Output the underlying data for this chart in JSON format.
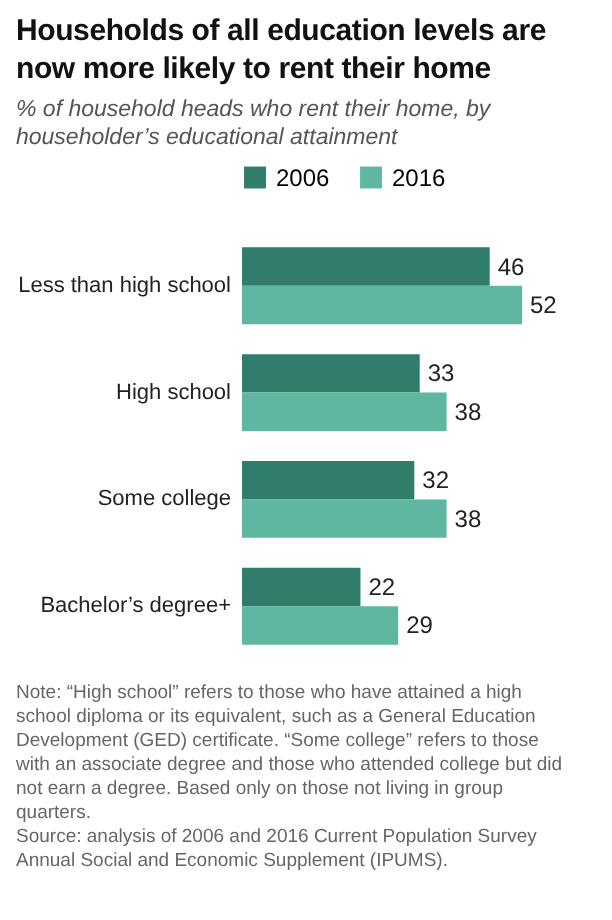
{
  "chart_data": {
    "type": "bar",
    "orientation": "horizontal",
    "title": "Households of all education levels are now more likely to rent their home",
    "subtitle": "% of household heads who rent their home, by householder’s educational attainment",
    "categories": [
      "Less than high school",
      "High school",
      "Some college",
      "Bachelor’s degree+"
    ],
    "series": [
      {
        "name": "2006",
        "color": "#2f7d6a",
        "values": [
          46,
          33,
          32,
          22
        ]
      },
      {
        "name": "2016",
        "color": "#5fb7a2",
        "values": [
          52,
          38,
          38,
          29
        ]
      }
    ],
    "data_labels": true,
    "legend": "top",
    "annotations": [
      "Note: “High school” refers to those who have attained a high school diploma or its equivalent, such as a General Education Development (GED) certificate. “Some college” refers to those with an associate degree and those who attended college but did not earn a degree. Based only on those not living in group quarters.",
      "Source: analysis of 2006 and 2016 Current Population Survey Annual Social and Economic Supplement (IPUMS)."
    ]
  }
}
